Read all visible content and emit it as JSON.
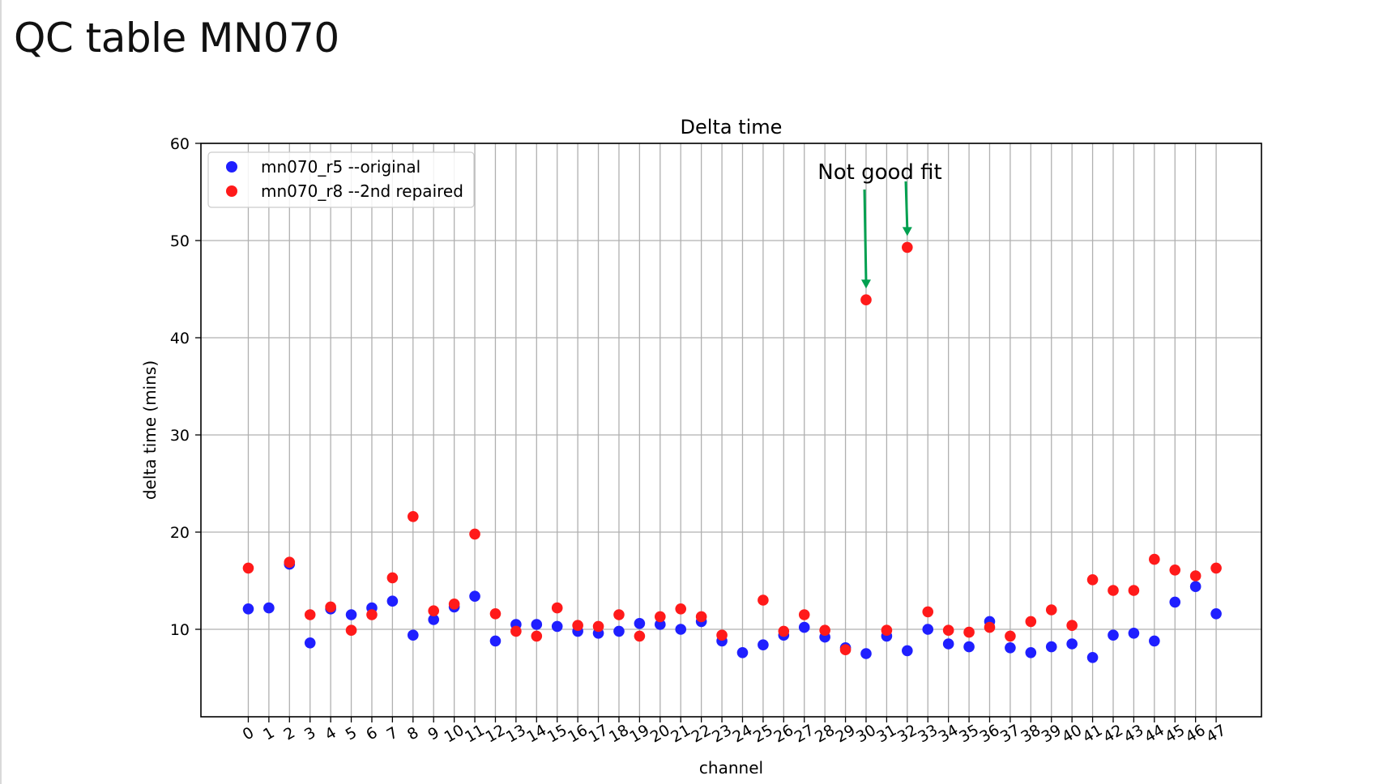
{
  "slide": {
    "title": "QC table MN070"
  },
  "chart_data": {
    "type": "scatter",
    "title": "Delta time",
    "xlabel": "channel",
    "ylabel": "delta time (mins)",
    "x": [
      0,
      1,
      2,
      3,
      4,
      5,
      6,
      7,
      8,
      9,
      10,
      11,
      12,
      13,
      14,
      15,
      16,
      17,
      18,
      19,
      20,
      21,
      22,
      23,
      24,
      25,
      26,
      27,
      28,
      29,
      30,
      31,
      32,
      33,
      34,
      35,
      36,
      37,
      38,
      39,
      40,
      41,
      42,
      43,
      44,
      45,
      46,
      47
    ],
    "xticks": [
      "0",
      "1",
      "2",
      "3",
      "4",
      "5",
      "6",
      "7",
      "8",
      "9",
      "10",
      "11",
      "12",
      "13",
      "14",
      "15",
      "16",
      "17",
      "18",
      "19",
      "20",
      "21",
      "22",
      "23",
      "24",
      "25",
      "26",
      "27",
      "28",
      "29",
      "30",
      "31",
      "32",
      "33",
      "34",
      "35",
      "36",
      "37",
      "38",
      "39",
      "40",
      "41",
      "42",
      "43",
      "44",
      "45",
      "46",
      "47"
    ],
    "yticks": [
      10,
      20,
      30,
      40,
      50,
      60
    ],
    "ylim": [
      1,
      60
    ],
    "xlim": [
      -2.3,
      49.2
    ],
    "grid": true,
    "legend_position": "top-left",
    "series": [
      {
        "name": "mn070_r5 --original",
        "color": "#1f1fff",
        "values": [
          12.1,
          12.2,
          16.7,
          8.6,
          12.1,
          11.5,
          12.2,
          12.9,
          9.4,
          11.0,
          12.3,
          13.4,
          8.8,
          10.5,
          10.5,
          10.3,
          9.8,
          9.6,
          9.8,
          10.6,
          10.5,
          10.0,
          10.8,
          8.8,
          7.6,
          8.4,
          9.4,
          10.2,
          9.2,
          8.1,
          7.5,
          9.3,
          7.8,
          10.0,
          8.5,
          8.2,
          10.8,
          8.1,
          7.6,
          8.2,
          8.5,
          7.1,
          9.4,
          9.6,
          8.8,
          12.8,
          14.4,
          11.6
        ]
      },
      {
        "name": "mn070_r8 --2nd repaired",
        "color": "#ff1a1a",
        "values": [
          16.3,
          null,
          16.9,
          11.5,
          12.3,
          9.9,
          11.5,
          15.3,
          21.6,
          11.9,
          12.6,
          19.8,
          11.6,
          9.8,
          9.3,
          12.2,
          10.4,
          10.3,
          11.5,
          9.3,
          11.3,
          12.1,
          11.3,
          9.4,
          null,
          13.0,
          9.8,
          11.5,
          9.9,
          7.9,
          43.9,
          9.9,
          49.3,
          11.8,
          9.9,
          9.7,
          10.2,
          9.3,
          10.8,
          12.0,
          10.4,
          15.1,
          14.0,
          14.0,
          17.2,
          16.1,
          15.5,
          16.3
        ]
      }
    ],
    "annotations": [
      {
        "text": "Not good fit",
        "color": "#00a050",
        "arrows_to": [
          {
            "x": 30,
            "y": 43.9
          },
          {
            "x": 32,
            "y": 49.3
          }
        ]
      }
    ]
  }
}
